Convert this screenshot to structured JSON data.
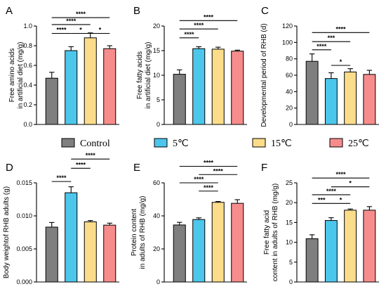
{
  "legend": [
    {
      "label": "Control",
      "color": "#7f7f7f"
    },
    {
      "label": "5℃",
      "color": "#4cc6ea"
    },
    {
      "label": "15℃",
      "color": "#fbdc8a"
    },
    {
      "label": "25℃",
      "color": "#f78c8c"
    }
  ],
  "chart_data": [
    {
      "type": "bar",
      "letter": "A",
      "ylabel": [
        "Free amino acids",
        "in artificial diet (mg/g)"
      ],
      "ylim": [
        0,
        1.0
      ],
      "ticks": [
        "0.0",
        "0.2",
        "0.4",
        "0.6",
        "0.8",
        "1.0"
      ],
      "tickvals": [
        0,
        0.2,
        0.4,
        0.6,
        0.8,
        1.0
      ],
      "values": [
        0.47,
        0.75,
        0.88,
        0.77
      ],
      "errors": [
        0.06,
        0.04,
        0.05,
        0.03
      ],
      "significance": [
        {
          "from": 0,
          "to": 1,
          "label": "****",
          "level": 0.925
        },
        {
          "from": 0,
          "to": 2,
          "label": "****",
          "level": 1.015
        },
        {
          "from": 0,
          "to": 3,
          "label": "****",
          "level": 1.085
        },
        {
          "from": 1,
          "to": 2,
          "label": "*",
          "level": 0.925
        },
        {
          "from": 2,
          "to": 3,
          "label": "*",
          "level": 0.925
        }
      ]
    },
    {
      "type": "bar",
      "letter": "B",
      "ylabel": [
        "Free fatty acids",
        "in artificial diet (mg/g)"
      ],
      "ylim": [
        0,
        20
      ],
      "ticks": [
        "0",
        "5",
        "10",
        "15",
        "20"
      ],
      "tickvals": [
        0,
        5,
        10,
        15,
        20
      ],
      "values": [
        10.2,
        15.4,
        15.3,
        14.9
      ],
      "errors": [
        0.9,
        0.4,
        0.4,
        0.2
      ],
      "significance": [
        {
          "from": 0,
          "to": 1,
          "label": "****",
          "level": 17.6
        },
        {
          "from": 0,
          "to": 2,
          "label": "****",
          "level": 19.4
        },
        {
          "from": 0,
          "to": 3,
          "label": "****",
          "level": 21.1
        }
      ]
    },
    {
      "type": "bar",
      "letter": "C",
      "ylabel": [
        "Developmental period of RHB (d)"
      ],
      "ylim": [
        0,
        120
      ],
      "ticks": [
        "0",
        "20",
        "40",
        "60",
        "80",
        "100",
        "120"
      ],
      "tickvals": [
        0,
        20,
        40,
        60,
        80,
        100,
        120
      ],
      "values": [
        77,
        56,
        64,
        61
      ],
      "errors": [
        9,
        7,
        4,
        5
      ],
      "significance": [
        {
          "from": 0,
          "to": 1,
          "label": "****",
          "level": 91
        },
        {
          "from": 0,
          "to": 2,
          "label": "***",
          "level": 101
        },
        {
          "from": 0,
          "to": 3,
          "label": "****",
          "level": 112
        },
        {
          "from": 1,
          "to": 2,
          "label": "*",
          "level": 72
        }
      ]
    },
    {
      "type": "bar",
      "letter": "D",
      "ylabel": [
        "Body weightof RHB adults (g)"
      ],
      "ylim": [
        0,
        0.015
      ],
      "ticks": [
        "0.000",
        "0.005",
        "0.010",
        "0.015"
      ],
      "tickvals": [
        0,
        0.005,
        0.01,
        0.015
      ],
      "values": [
        0.0083,
        0.0135,
        0.0091,
        0.0086
      ],
      "errors": [
        0.0007,
        0.0009,
        0.0002,
        0.0003
      ],
      "significance": [
        {
          "from": 0,
          "to": 1,
          "label": "****",
          "level": 0.0152
        },
        {
          "from": 1,
          "to": 2,
          "label": "****",
          "level": 0.0172
        },
        {
          "from": 1,
          "to": 3,
          "label": "****",
          "level": 0.0186
        }
      ]
    },
    {
      "type": "bar",
      "letter": "E",
      "ylabel": [
        "Protein content",
        "in adults of RHB (mg/g)"
      ],
      "ylim": [
        0,
        60
      ],
      "ticks": [
        "0",
        "20",
        "40",
        "60"
      ],
      "tickvals": [
        0,
        20,
        40,
        60
      ],
      "values": [
        34.5,
        37.8,
        48.2,
        47.6
      ],
      "errors": [
        1.6,
        1.0,
        0.5,
        2.2
      ],
      "significance": [
        {
          "from": 1,
          "to": 2,
          "label": "****",
          "level": 55
        },
        {
          "from": 0,
          "to": 2,
          "label": "****",
          "level": 60
        },
        {
          "from": 1,
          "to": 3,
          "label": "****",
          "level": 65
        },
        {
          "from": 0,
          "to": 3,
          "label": "****",
          "level": 70
        }
      ]
    },
    {
      "type": "bar",
      "letter": "F",
      "ylabel": [
        "Free fatty acid",
        "content in adults of RHB (mg/g)"
      ],
      "ylim": [
        0,
        25
      ],
      "ticks": [
        "0",
        "5",
        "10",
        "15",
        "20",
        "25"
      ],
      "tickvals": [
        0,
        5,
        10,
        15,
        20,
        25
      ],
      "values": [
        10.9,
        15.5,
        18.1,
        18.1
      ],
      "errors": [
        1.0,
        0.7,
        0.3,
        0.9
      ],
      "significance": [
        {
          "from": 0,
          "to": 1,
          "label": "***",
          "level": 19.8
        },
        {
          "from": 1,
          "to": 2,
          "label": "*",
          "level": 19.8
        },
        {
          "from": 0,
          "to": 2,
          "label": "****",
          "level": 22.0
        },
        {
          "from": 1,
          "to": 3,
          "label": "*",
          "level": 24.0
        },
        {
          "from": 0,
          "to": 3,
          "label": "****",
          "level": 26.2
        }
      ]
    }
  ]
}
